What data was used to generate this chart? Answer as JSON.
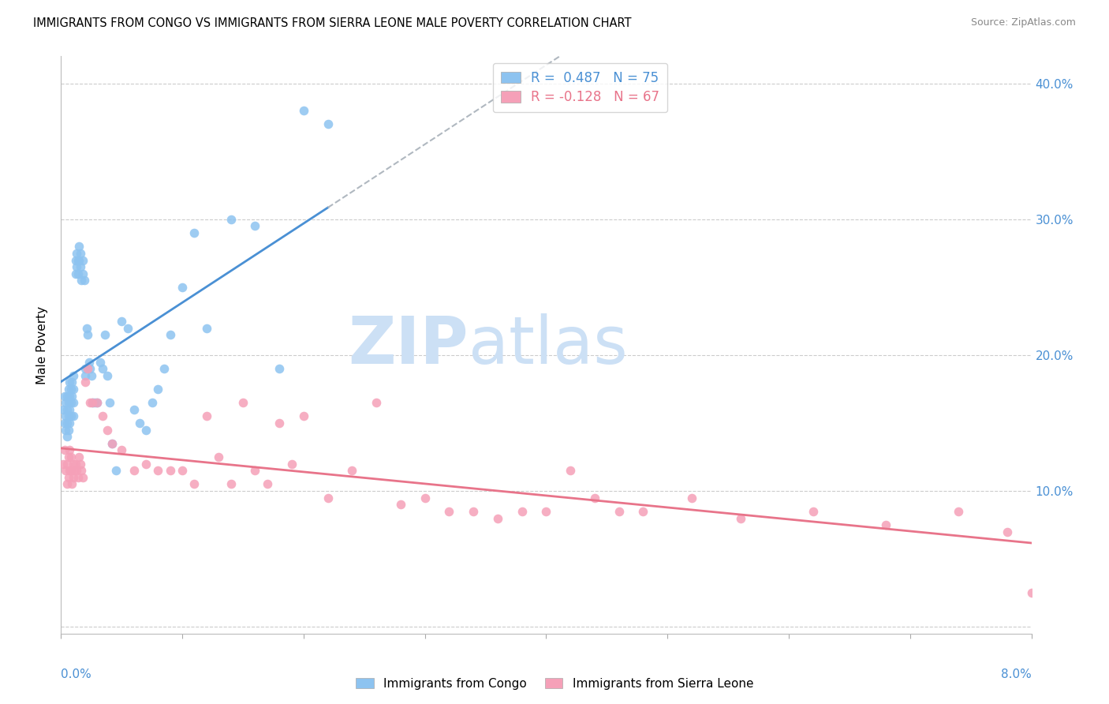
{
  "title": "IMMIGRANTS FROM CONGO VS IMMIGRANTS FROM SIERRA LEONE MALE POVERTY CORRELATION CHART",
  "source": "Source: ZipAtlas.com",
  "ylabel": "Male Poverty",
  "xlim": [
    0.0,
    0.08
  ],
  "ylim": [
    -0.005,
    0.42
  ],
  "right_yticks": [
    0.0,
    0.1,
    0.2,
    0.3,
    0.4
  ],
  "right_yticklabels": [
    "",
    "10.0%",
    "20.0%",
    "30.0%",
    "40.0%"
  ],
  "legend_r_congo": "R =  0.487",
  "legend_n_congo": "N = 75",
  "legend_r_sierra": "R = -0.128",
  "legend_n_sierra": "N = 67",
  "color_congo": "#8dc3f0",
  "color_sierra": "#f5a0b8",
  "trendline_congo_color": "#4a90d4",
  "trendline_sierra_color": "#e8748a",
  "trendline_extrap_color": "#b0b8c0",
  "watermark_zip": "ZIP",
  "watermark_atlas": "atlas",
  "watermark_color": "#cce0f5",
  "congo_x": [
    0.0002,
    0.0003,
    0.0003,
    0.0004,
    0.0004,
    0.0004,
    0.0005,
    0.0005,
    0.0005,
    0.0005,
    0.0006,
    0.0006,
    0.0006,
    0.0006,
    0.0007,
    0.0007,
    0.0007,
    0.0007,
    0.0008,
    0.0008,
    0.0008,
    0.0009,
    0.0009,
    0.001,
    0.001,
    0.001,
    0.001,
    0.0012,
    0.0012,
    0.0013,
    0.0013,
    0.0014,
    0.0014,
    0.0015,
    0.0015,
    0.0016,
    0.0016,
    0.0017,
    0.0018,
    0.0018,
    0.0019,
    0.002,
    0.002,
    0.0021,
    0.0022,
    0.0023,
    0.0024,
    0.0025,
    0.0026,
    0.0028,
    0.003,
    0.0032,
    0.0034,
    0.0036,
    0.0038,
    0.004,
    0.0042,
    0.0045,
    0.005,
    0.0055,
    0.006,
    0.0065,
    0.007,
    0.0075,
    0.008,
    0.0085,
    0.009,
    0.01,
    0.011,
    0.012,
    0.014,
    0.016,
    0.018,
    0.02,
    0.022
  ],
  "congo_y": [
    0.16,
    0.17,
    0.15,
    0.165,
    0.155,
    0.145,
    0.17,
    0.16,
    0.15,
    0.14,
    0.175,
    0.165,
    0.155,
    0.145,
    0.18,
    0.17,
    0.16,
    0.15,
    0.175,
    0.165,
    0.155,
    0.18,
    0.17,
    0.185,
    0.175,
    0.165,
    0.155,
    0.27,
    0.26,
    0.275,
    0.265,
    0.27,
    0.26,
    0.28,
    0.27,
    0.275,
    0.265,
    0.255,
    0.27,
    0.26,
    0.255,
    0.19,
    0.185,
    0.22,
    0.215,
    0.195,
    0.19,
    0.185,
    0.165,
    0.165,
    0.165,
    0.195,
    0.19,
    0.215,
    0.185,
    0.165,
    0.135,
    0.115,
    0.225,
    0.22,
    0.16,
    0.15,
    0.145,
    0.165,
    0.175,
    0.19,
    0.215,
    0.25,
    0.29,
    0.22,
    0.3,
    0.295,
    0.19,
    0.38,
    0.37
  ],
  "sierra_x": [
    0.0002,
    0.0003,
    0.0004,
    0.0005,
    0.0005,
    0.0006,
    0.0006,
    0.0007,
    0.0007,
    0.0008,
    0.0008,
    0.0009,
    0.001,
    0.001,
    0.0011,
    0.0012,
    0.0013,
    0.0014,
    0.0015,
    0.0016,
    0.0017,
    0.0018,
    0.002,
    0.0022,
    0.0024,
    0.0026,
    0.003,
    0.0034,
    0.0038,
    0.0042,
    0.005,
    0.006,
    0.007,
    0.008,
    0.009,
    0.01,
    0.011,
    0.012,
    0.013,
    0.014,
    0.015,
    0.016,
    0.017,
    0.018,
    0.019,
    0.02,
    0.022,
    0.024,
    0.026,
    0.028,
    0.03,
    0.032,
    0.034,
    0.036,
    0.038,
    0.04,
    0.042,
    0.044,
    0.046,
    0.048,
    0.052,
    0.056,
    0.062,
    0.068,
    0.074,
    0.078,
    0.08
  ],
  "sierra_y": [
    0.12,
    0.13,
    0.115,
    0.12,
    0.105,
    0.125,
    0.11,
    0.13,
    0.115,
    0.125,
    0.115,
    0.105,
    0.12,
    0.11,
    0.115,
    0.12,
    0.115,
    0.11,
    0.125,
    0.12,
    0.115,
    0.11,
    0.18,
    0.19,
    0.165,
    0.165,
    0.165,
    0.155,
    0.145,
    0.135,
    0.13,
    0.115,
    0.12,
    0.115,
    0.115,
    0.115,
    0.105,
    0.155,
    0.125,
    0.105,
    0.165,
    0.115,
    0.105,
    0.15,
    0.12,
    0.155,
    0.095,
    0.115,
    0.165,
    0.09,
    0.095,
    0.085,
    0.085,
    0.08,
    0.085,
    0.085,
    0.115,
    0.095,
    0.085,
    0.085,
    0.095,
    0.08,
    0.085,
    0.075,
    0.085,
    0.07,
    0.025
  ]
}
